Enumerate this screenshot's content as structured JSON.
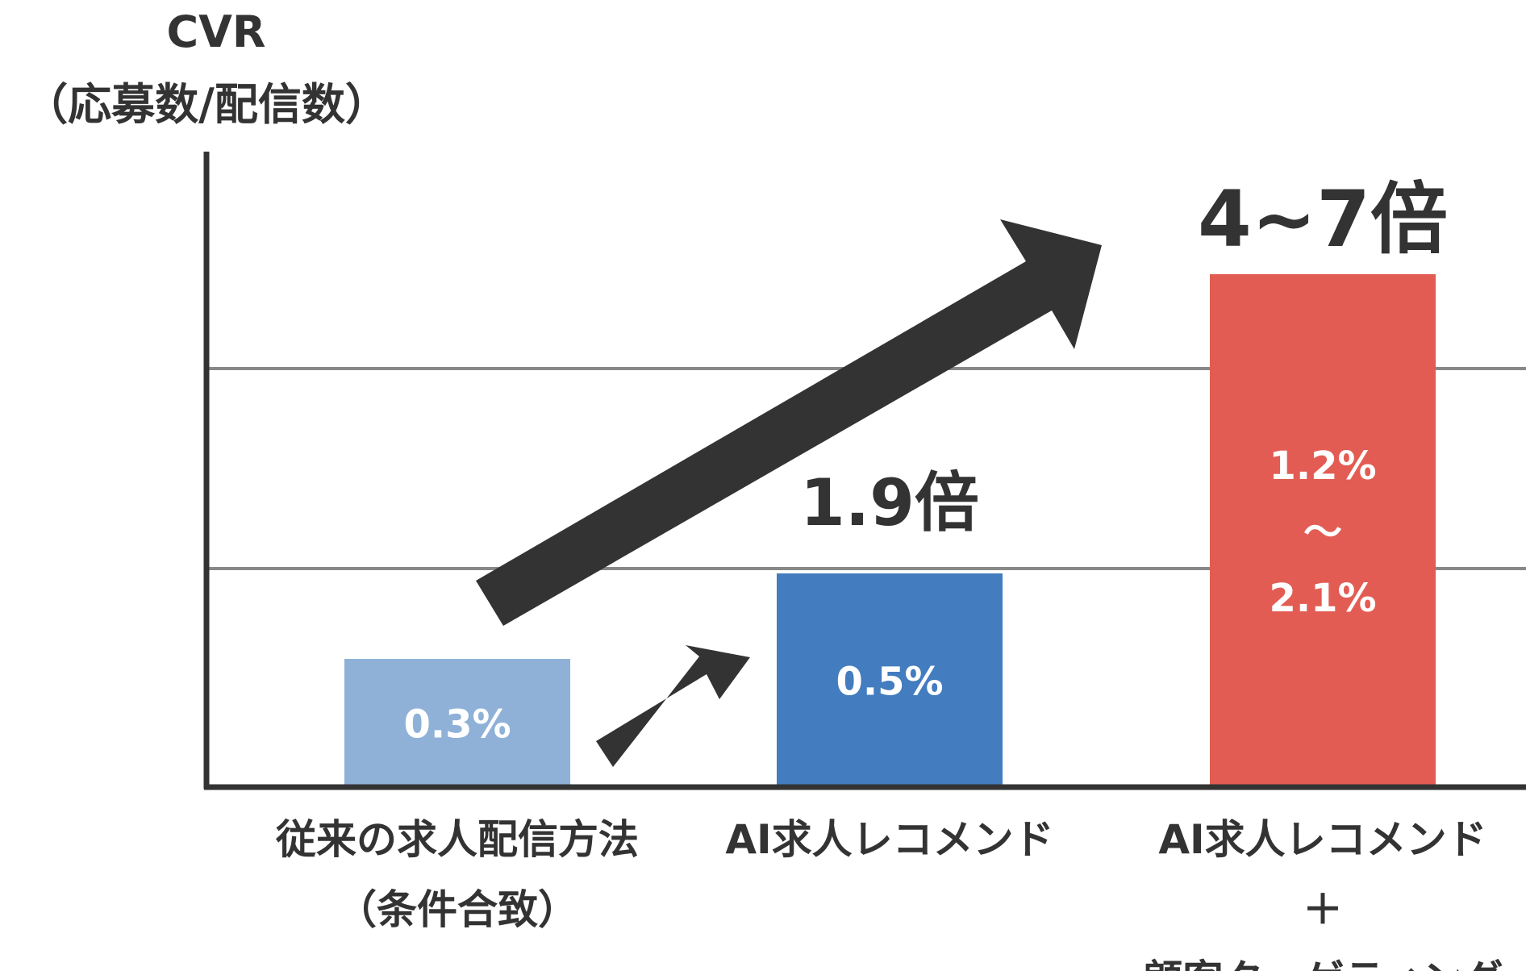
{
  "chart_data": {
    "type": "bar",
    "ylabel": "CVR",
    "ylabel_sub": "（応募数/配信数）",
    "grid": true,
    "categories": [
      {
        "lines": [
          "従来の求人配信方法",
          "（条件合致）"
        ]
      },
      {
        "lines": [
          "AI求人レコメンド"
        ]
      },
      {
        "lines": [
          "AI求人レコメンド",
          "＋",
          "顧客ターゲティング"
        ]
      }
    ],
    "values": [
      0.3,
      0.5,
      1.2
    ],
    "value_labels": [
      [
        "0.3%"
      ],
      [
        "0.5%"
      ],
      [
        "1.2%",
        "〜",
        "2.1%"
      ]
    ],
    "bar_colors": [
      "#8fb1d8",
      "#437cbf",
      "#e35c53"
    ],
    "annotations": [
      {
        "text": "1.9倍",
        "bar": 1
      },
      {
        "text": "4~7倍",
        "bar": 2
      }
    ]
  }
}
